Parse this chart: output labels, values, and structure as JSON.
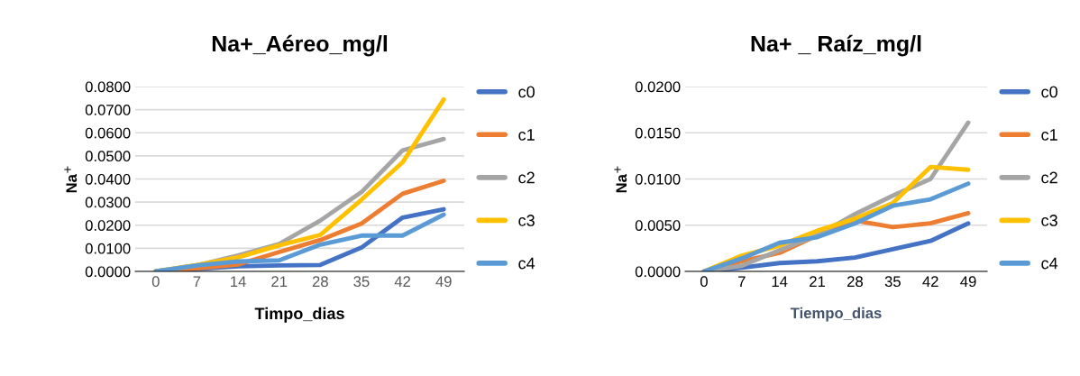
{
  "chart_data": [
    {
      "type": "line",
      "title": "Na+_Aéreo_mg/l",
      "xlabel": "Timpo_dias",
      "ylabel": "Na$^{+}$",
      "categories": [
        "0",
        "7",
        "14",
        "21",
        "28",
        "35",
        "42",
        "49"
      ],
      "ylim": [
        0,
        0.08
      ],
      "yticks": [
        {
          "value": 0,
          "label": "0.0000"
        },
        {
          "value": 0.01,
          "label": "0.0100"
        },
        {
          "value": 0.02,
          "label": "0.0200"
        },
        {
          "value": 0.03,
          "label": "0.0300"
        },
        {
          "value": 0.04,
          "label": "0.0400"
        },
        {
          "value": 0.05,
          "label": "0.0500"
        },
        {
          "value": 0.06,
          "label": "0.0600"
        },
        {
          "value": 0.07,
          "label": "0.0700"
        },
        {
          "value": 0.08,
          "label": "0.0800"
        }
      ],
      "grid": "y",
      "legend": "right",
      "marker": "none",
      "line_style": "solid",
      "series": [
        {
          "name": "c0",
          "color": "#4472c4",
          "values": [
            0,
            0.001,
            0.0022,
            0.0026,
            0.0028,
            0.0103,
            0.0233,
            0.0269
          ]
        },
        {
          "name": "c1",
          "color": "#ed7d31",
          "values": [
            0,
            0.0013,
            0.003,
            0.0084,
            0.0136,
            0.0207,
            0.0336,
            0.0392
          ]
        },
        {
          "name": "c2",
          "color": "#a5a5a5",
          "values": [
            0,
            0.0026,
            0.0069,
            0.0119,
            0.022,
            0.0343,
            0.0524,
            0.0573
          ]
        },
        {
          "name": "c3",
          "color": "#ffc000",
          "values": [
            0,
            0.0028,
            0.0061,
            0.0113,
            0.0158,
            0.031,
            0.0472,
            0.0744
          ]
        },
        {
          "name": "c4",
          "color": "#5b9bd5",
          "values": [
            0,
            0.0026,
            0.0043,
            0.0048,
            0.0116,
            0.0155,
            0.0155,
            0.0246
          ]
        }
      ]
    },
    {
      "type": "line",
      "title": "Na+ _ Raíz_mg/l",
      "xlabel": "Tiempo_dias",
      "ylabel": "Na$^{+}$",
      "categories": [
        "0",
        "7",
        "14",
        "21",
        "28",
        "35",
        "42",
        "49"
      ],
      "ylim": [
        0,
        0.02
      ],
      "yticks": [
        {
          "value": 0,
          "label": "0.0000"
        },
        {
          "value": 0.005,
          "label": "0.0050"
        },
        {
          "value": 0.01,
          "label": "0.0100"
        },
        {
          "value": 0.015,
          "label": "0.0150"
        },
        {
          "value": 0.02,
          "label": "0.0200"
        }
      ],
      "grid": "y",
      "legend": "right",
      "marker": "none",
      "line_style": "solid",
      "series": [
        {
          "name": "c0",
          "color": "#4472c4",
          "values": [
            0,
            0.0004,
            0.0009,
            0.0011,
            0.0015,
            0.0024,
            0.0033,
            0.0052
          ]
        },
        {
          "name": "c1",
          "color": "#ed7d31",
          "values": [
            0,
            0.0011,
            0.002,
            0.0039,
            0.0055,
            0.0048,
            0.0052,
            0.0063
          ]
        },
        {
          "name": "c2",
          "color": "#a5a5a5",
          "values": [
            0,
            0.0006,
            0.0023,
            0.0039,
            0.0062,
            0.0082,
            0.01,
            0.0161
          ]
        },
        {
          "name": "c3",
          "color": "#ffc000",
          "values": [
            0,
            0.0017,
            0.0028,
            0.0044,
            0.0057,
            0.0074,
            0.0113,
            0.011
          ]
        },
        {
          "name": "c4",
          "color": "#5b9bd5",
          "values": [
            0,
            0.0014,
            0.0031,
            0.0037,
            0.0052,
            0.0071,
            0.0078,
            0.0095
          ]
        }
      ]
    }
  ]
}
